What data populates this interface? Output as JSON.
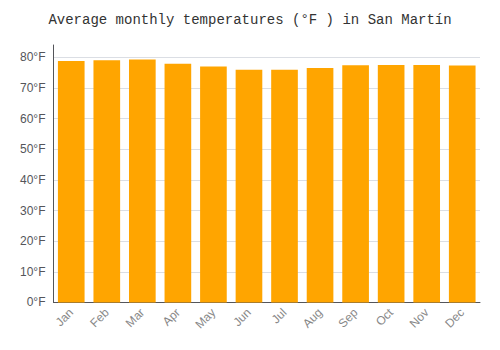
{
  "chart_data": {
    "type": "bar",
    "title": "Average monthly temperatures (°F ) in San Martín",
    "categories": [
      "Jan",
      "Feb",
      "Mar",
      "Apr",
      "May",
      "Jun",
      "Jul",
      "Aug",
      "Sep",
      "Oct",
      "Nov",
      "Dec"
    ],
    "values": [
      78.8,
      79.0,
      79.3,
      77.9,
      77.0,
      75.9,
      75.9,
      76.5,
      77.4,
      77.5,
      77.5,
      77.3
    ],
    "color": "#FFA500",
    "ylim": [
      0,
      84
    ],
    "yticks": [
      {
        "value": 0,
        "label": "0°F"
      },
      {
        "value": 10,
        "label": "10°F"
      },
      {
        "value": 20,
        "label": "20°F"
      },
      {
        "value": 30,
        "label": "30°F"
      },
      {
        "value": 40,
        "label": "40°F"
      },
      {
        "value": 50,
        "label": "50°F"
      },
      {
        "value": 60,
        "label": "60°F"
      },
      {
        "value": 70,
        "label": "70°F"
      },
      {
        "value": 80,
        "label": "80°F"
      }
    ],
    "grid": true
  }
}
